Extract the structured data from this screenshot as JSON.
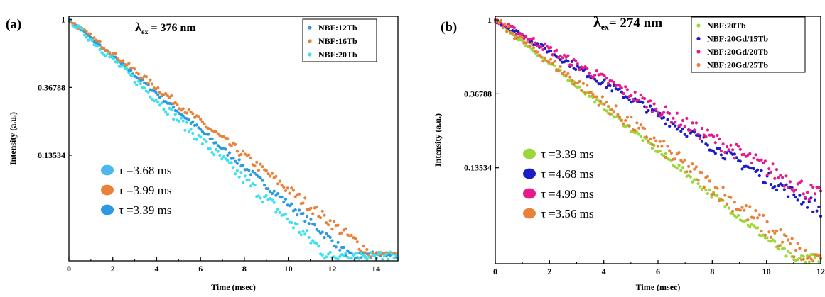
{
  "chart_data": [
    {
      "type": "scatter",
      "panel_label": "(a)",
      "excitation": {
        "symbol": "λ",
        "subscript": "ex",
        "rest": " = 376 nm"
      },
      "xlabel": "Time (msec)",
      "ylabel": "Intensity (a.u.)",
      "xlim": [
        0,
        15
      ],
      "ylim": [
        0.0285,
        1.05
      ],
      "yscale": "log",
      "xticks": [
        0,
        2,
        4,
        6,
        8,
        10,
        12,
        14
      ],
      "yticks": [
        {
          "value": 1,
          "label": "1"
        },
        {
          "value": 0.36788,
          "label": "0.36788"
        },
        {
          "value": 0.13534,
          "label": "0.13534"
        }
      ],
      "legend_position": "top-right",
      "series": [
        {
          "name": "NBF:12Tb",
          "color": "#2b9ae0",
          "tau": 3.68,
          "tau_label": "τ =3.68 ms",
          "tau_marker_color": "#4db8f0"
        },
        {
          "name": "NBF:16Tb",
          "color": "#e8823a",
          "tau": 3.99,
          "tau_label": "τ =3.99 ms",
          "tau_marker_color": "#e8823a"
        },
        {
          "name": "NBF:20Tb",
          "color": "#3fe0ee",
          "tau": 3.39,
          "tau_label": "τ =3.39 ms",
          "tau_marker_color": "#2b9ae0"
        }
      ]
    },
    {
      "type": "scatter",
      "panel_label": "(b)",
      "excitation": {
        "symbol": "λ",
        "subscript": "ex",
        "rest": "= 274 nm"
      },
      "xlabel": "Time (msec)",
      "ylabel": "Intensity (a.u.)",
      "xlim": [
        0,
        12
      ],
      "ylim": [
        0.037,
        1.05
      ],
      "yscale": "log",
      "xticks": [
        0,
        2,
        4,
        6,
        8,
        10,
        12
      ],
      "yticks": [
        {
          "value": 1,
          "label": "1"
        },
        {
          "value": 0.36788,
          "label": "0.36788"
        },
        {
          "value": 0.13534,
          "label": "0.13534"
        }
      ],
      "legend_position": "top-right",
      "series": [
        {
          "name": "NBF:20Tb",
          "color": "#9ad83a",
          "tau": 3.39,
          "tau_label": "τ =3.39 ms",
          "tau_marker_color": "#9ad83a"
        },
        {
          "name": "NBF:20Gd/15Tb",
          "color": "#1c1cc8",
          "tau": 4.68,
          "tau_label": "τ =4.68 ms",
          "tau_marker_color": "#1c1cc8"
        },
        {
          "name": "NBF:20Gd/20Tb",
          "color": "#e8198c",
          "tau": 4.99,
          "tau_label": "τ =4.99 ms",
          "tau_marker_color": "#e8198c"
        },
        {
          "name": "NBF:20Gd/25Tb",
          "color": "#e8823a",
          "tau": 3.56,
          "tau_label": "τ =3.56 ms",
          "tau_marker_color": "#e8823a"
        }
      ]
    }
  ]
}
